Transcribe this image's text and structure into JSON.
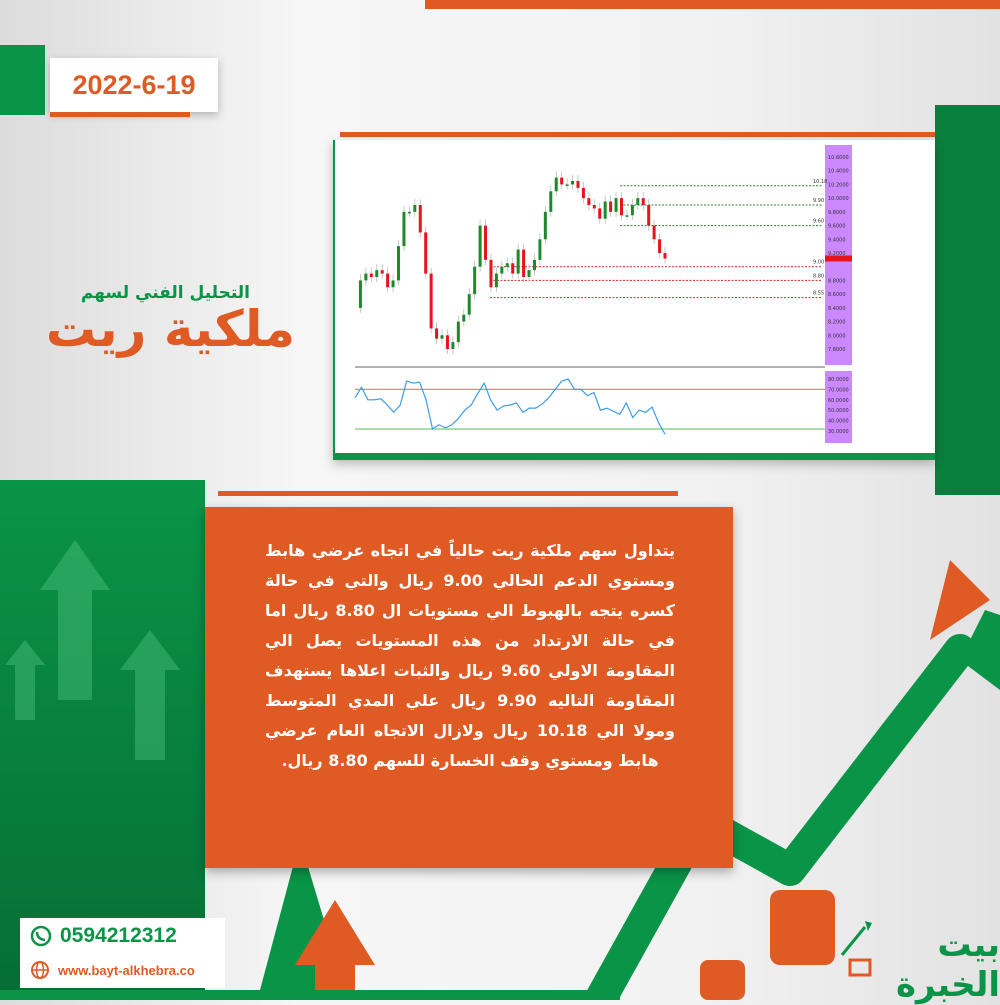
{
  "date": "2022-6-19",
  "subtitle": "التحليل الفني لسهم",
  "title": "ملكية ريت",
  "paragraph": "يتداول سهم ملكية ريت حالياً في اتجاه عرضي هابط ومستوي الدعم الحالي 9.00 ريال والتي في حالة كسره يتجه بالهبوط الي مستويات ال 8.80 ريال اما في حالة الارتداد من هذه المستويات يصل الي المقاومة الاولي 9.60 ريال والثبات اعلاها يستهدف المقاومة التاليه 9.90 ريال علي المدي المتوسط ومولا الي 10.18 ريال ولازال الاتجاه العام عرضي هابط ومستوي وقف الخسارة للسهم 8.80 ريال.",
  "contact": {
    "phone": "0594212312",
    "website": "www.bayt-alkhebra.co"
  },
  "logo": {
    "text": "بيت الخبرة"
  },
  "colors": {
    "orange": "#e05a24",
    "green": "#0a9447",
    "axis": "#cc88ff"
  },
  "chart_data": {
    "type": "candlestick",
    "price_ticks": [
      10.6,
      10.4,
      10.2,
      10.0,
      9.8,
      9.6,
      9.4,
      9.2,
      8.8,
      8.6,
      8.4,
      8.2,
      8.0,
      7.8
    ],
    "ylim": [
      7.7,
      10.7
    ],
    "levels": [
      {
        "label": "10.18",
        "value": 10.18,
        "color": "#2e7d32"
      },
      {
        "label": "9.90",
        "value": 9.9,
        "color": "#2e7d32"
      },
      {
        "label": "9.60",
        "value": 9.6,
        "color": "#2e7d32"
      },
      {
        "label": "9.00",
        "value": 9.0,
        "color": "#c62828"
      },
      {
        "label": "8.80",
        "value": 8.8,
        "color": "#c62828"
      },
      {
        "label": "8.55",
        "value": 8.55,
        "color": "#c62828"
      }
    ],
    "closes": [
      8.4,
      8.8,
      8.9,
      8.85,
      8.95,
      8.9,
      8.7,
      8.8,
      9.3,
      9.8,
      9.8,
      9.9,
      9.5,
      8.9,
      8.1,
      7.95,
      8.0,
      7.8,
      7.9,
      8.2,
      8.3,
      8.6,
      9.0,
      9.6,
      9.1,
      8.7,
      8.9,
      9.0,
      9.05,
      8.9,
      9.25,
      8.85,
      8.95,
      9.1,
      9.4,
      9.8,
      10.1,
      10.3,
      10.2,
      10.2,
      10.25,
      10.15,
      10.0,
      9.9,
      9.85,
      9.7,
      9.95,
      9.8,
      10.0,
      9.75,
      9.75,
      9.9,
      10.0,
      9.9,
      9.6,
      9.4,
      9.2,
      9.12
    ],
    "current_price": 9.12,
    "rsi_ticks": [
      80,
      70,
      60,
      50,
      40,
      30
    ],
    "rsi_levels": [
      70,
      30
    ],
    "rsi": [
      62,
      72,
      60,
      60,
      61,
      55,
      48,
      55,
      78,
      76,
      77,
      60,
      32,
      36,
      33,
      36,
      42,
      50,
      55,
      66,
      76,
      60,
      50,
      54,
      55,
      57,
      48,
      52,
      52,
      56,
      62,
      70,
      78,
      80,
      70,
      70,
      64,
      67,
      50,
      52,
      49,
      46,
      57,
      43,
      50,
      48,
      53,
      38,
      27
    ]
  }
}
